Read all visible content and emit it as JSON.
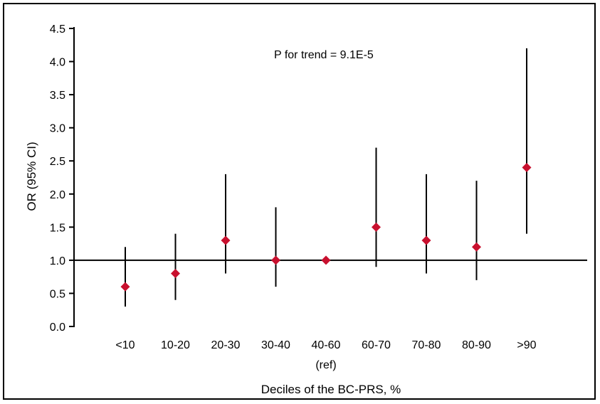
{
  "chart_data": {
    "type": "scatter",
    "subtype": "forest-plot-with-error-bars",
    "title": "",
    "xlabel": "Deciles of the BC-PRS, %",
    "ylabel": "OR (95% CI)",
    "annotation": "P for trend = 9.1E-5",
    "categories": [
      "<10",
      "10-20",
      "20-30",
      "30-40",
      "40-60",
      "60-70",
      "70-80",
      "80-90",
      ">90"
    ],
    "category_sublabels": [
      "",
      "",
      "",
      "",
      "(ref)",
      "",
      "",
      "",
      ""
    ],
    "y_ticks": [
      "0.0",
      "0.5",
      "1.0",
      "1.5",
      "2.0",
      "2.5",
      "3.0",
      "3.5",
      "4.0",
      "4.5"
    ],
    "ylim": [
      0,
      4.5
    ],
    "reference_line": 1.0,
    "series": [
      {
        "values": [
          0.6,
          0.8,
          1.3,
          1.0,
          1.0,
          1.5,
          1.3,
          1.2,
          2.4
        ],
        "lower": [
          0.3,
          0.4,
          0.8,
          0.6,
          1.0,
          0.9,
          0.8,
          0.7,
          1.4
        ],
        "upper": [
          1.2,
          1.4,
          2.3,
          1.8,
          1.0,
          2.7,
          2.3,
          2.2,
          4.2
        ]
      }
    ],
    "marker": "diamond",
    "marker_color": "#c8102e",
    "bar_color": "#000000",
    "grid": false
  }
}
